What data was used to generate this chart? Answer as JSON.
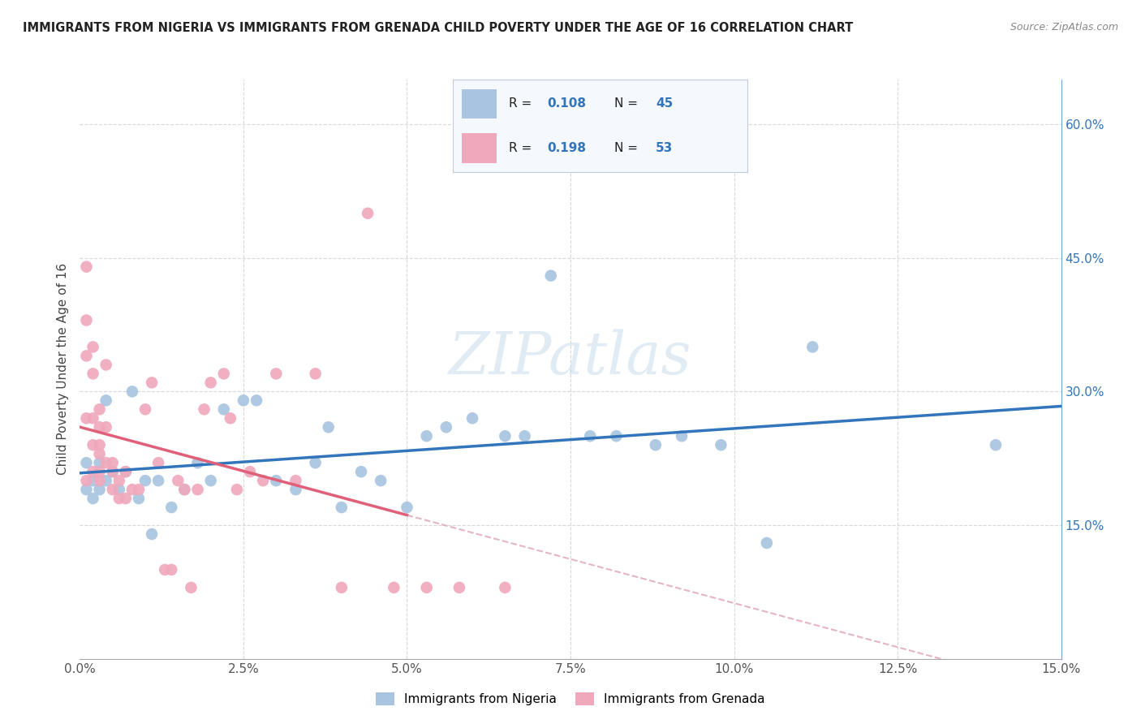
{
  "title": "IMMIGRANTS FROM NIGERIA VS IMMIGRANTS FROM GRENADA CHILD POVERTY UNDER THE AGE OF 16 CORRELATION CHART",
  "source": "Source: ZipAtlas.com",
  "ylabel": "Child Poverty Under the Age of 16",
  "xlim": [
    0.0,
    0.15
  ],
  "ylim": [
    0.0,
    0.65
  ],
  "nigeria_R": "0.108",
  "nigeria_N": "45",
  "grenada_R": "0.198",
  "grenada_N": "53",
  "nigeria_color": "#a8c4e0",
  "grenada_color": "#f0a8bc",
  "nigeria_line_color": "#3375bb",
  "grenada_line_color": "#e0607a",
  "grenada_dash_color": "#e0a8bc",
  "legend_box_color": "#e8f0f8",
  "legend_border_color": "#c0ccd8",
  "stat_color_blue": "#3375bb",
  "stat_color_pink": "#e0607a",
  "watermark": "ZIPatlas",
  "grid_color": "#d8d8d8",
  "nigeria_x": [
    0.001,
    0.001,
    0.002,
    0.002,
    0.003,
    0.003,
    0.004,
    0.004,
    0.005,
    0.006,
    0.007,
    0.008,
    0.009,
    0.01,
    0.011,
    0.012,
    0.014,
    0.016,
    0.018,
    0.02,
    0.022,
    0.025,
    0.027,
    0.03,
    0.033,
    0.036,
    0.038,
    0.04,
    0.043,
    0.046,
    0.05,
    0.053,
    0.056,
    0.06,
    0.065,
    0.068,
    0.072,
    0.078,
    0.082,
    0.088,
    0.092,
    0.098,
    0.105,
    0.112,
    0.14
  ],
  "nigeria_y": [
    0.22,
    0.19,
    0.2,
    0.18,
    0.22,
    0.19,
    0.2,
    0.29,
    0.21,
    0.19,
    0.21,
    0.3,
    0.18,
    0.2,
    0.14,
    0.2,
    0.17,
    0.19,
    0.22,
    0.2,
    0.28,
    0.29,
    0.29,
    0.2,
    0.19,
    0.22,
    0.26,
    0.17,
    0.21,
    0.2,
    0.17,
    0.25,
    0.26,
    0.27,
    0.25,
    0.25,
    0.43,
    0.25,
    0.25,
    0.24,
    0.25,
    0.24,
    0.13,
    0.35,
    0.24
  ],
  "grenada_x": [
    0.001,
    0.001,
    0.001,
    0.001,
    0.001,
    0.002,
    0.002,
    0.002,
    0.002,
    0.002,
    0.003,
    0.003,
    0.003,
    0.003,
    0.003,
    0.003,
    0.004,
    0.004,
    0.004,
    0.005,
    0.005,
    0.005,
    0.006,
    0.006,
    0.007,
    0.007,
    0.008,
    0.009,
    0.01,
    0.011,
    0.012,
    0.013,
    0.014,
    0.015,
    0.016,
    0.017,
    0.018,
    0.019,
    0.02,
    0.022,
    0.023,
    0.024,
    0.026,
    0.028,
    0.03,
    0.033,
    0.036,
    0.04,
    0.044,
    0.048,
    0.053,
    0.058,
    0.065
  ],
  "grenada_y": [
    0.44,
    0.38,
    0.34,
    0.27,
    0.2,
    0.35,
    0.32,
    0.27,
    0.24,
    0.21,
    0.28,
    0.26,
    0.24,
    0.23,
    0.21,
    0.2,
    0.33,
    0.26,
    0.22,
    0.22,
    0.21,
    0.19,
    0.2,
    0.18,
    0.21,
    0.18,
    0.19,
    0.19,
    0.28,
    0.31,
    0.22,
    0.1,
    0.1,
    0.2,
    0.19,
    0.08,
    0.19,
    0.28,
    0.31,
    0.32,
    0.27,
    0.19,
    0.21,
    0.2,
    0.32,
    0.2,
    0.32,
    0.08,
    0.5,
    0.08,
    0.08,
    0.08,
    0.08
  ]
}
